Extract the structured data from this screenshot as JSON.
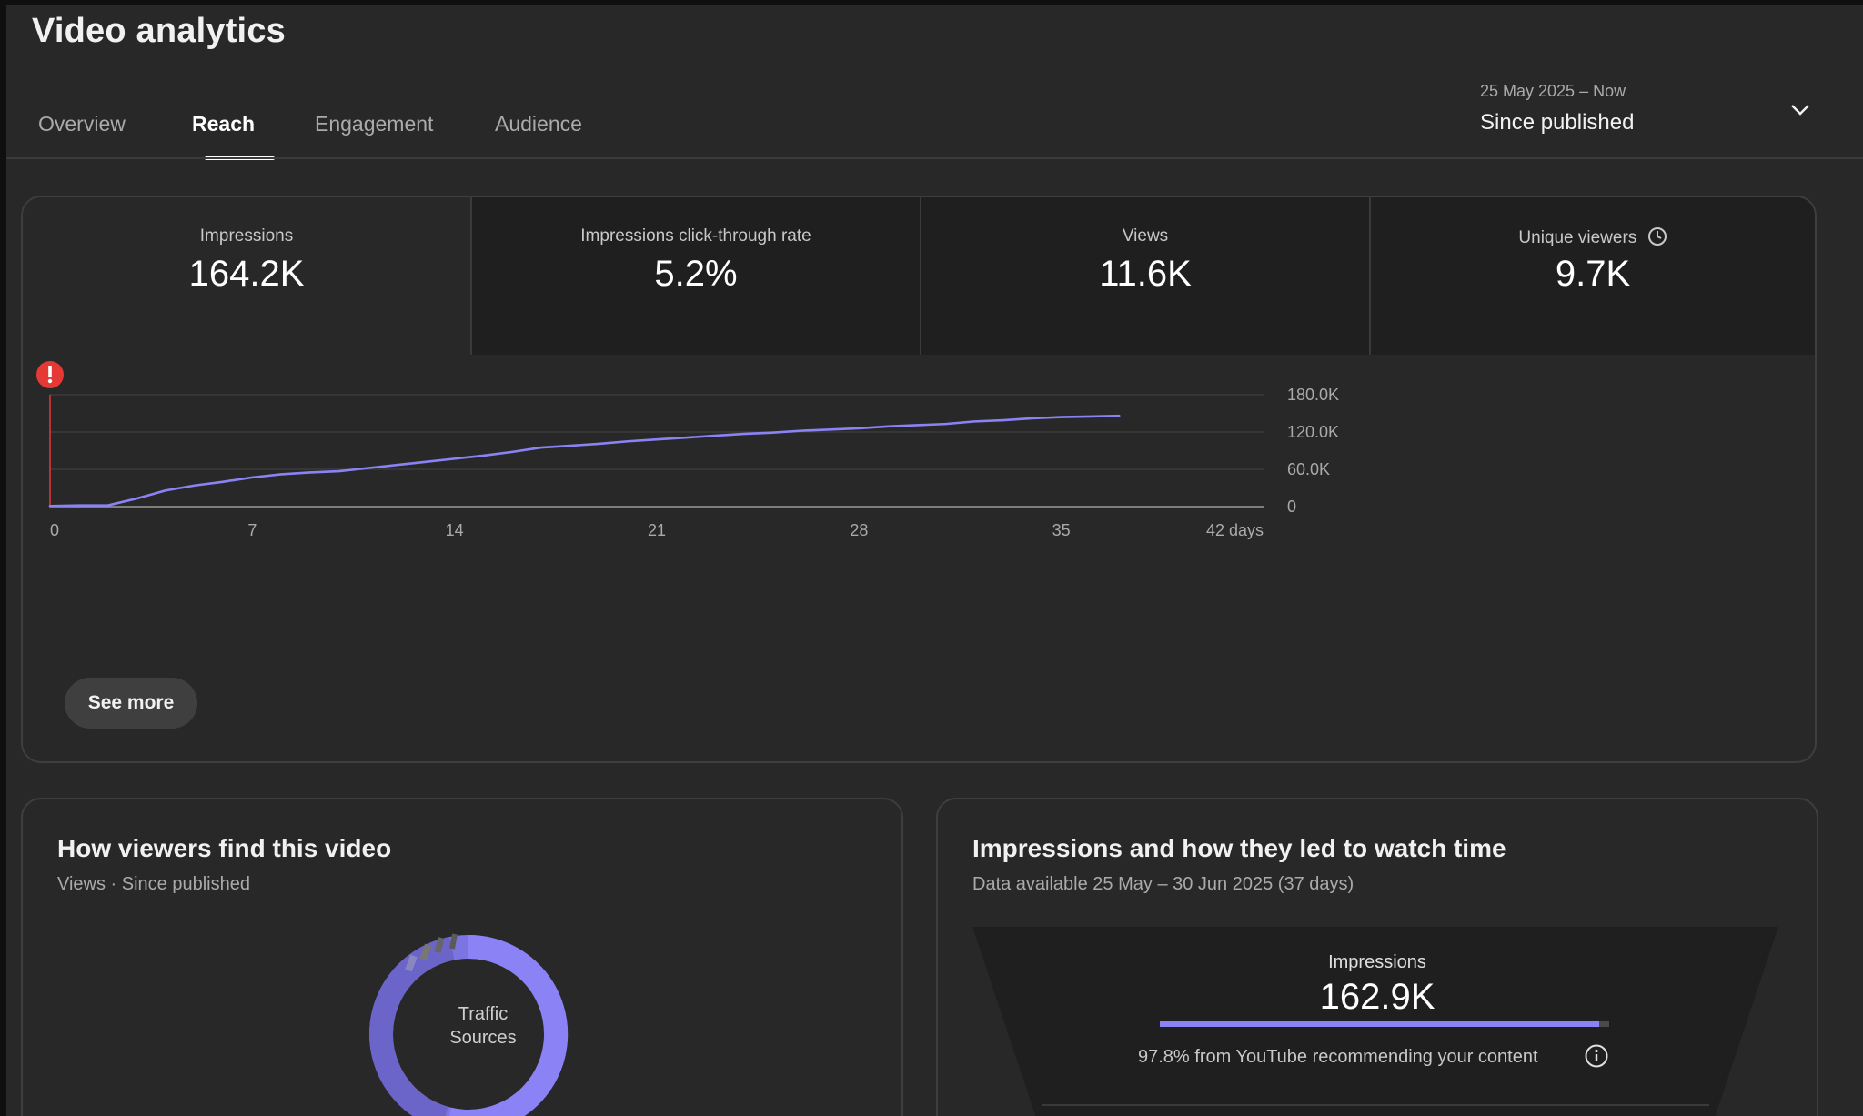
{
  "page": {
    "title": "Video analytics"
  },
  "tabs": [
    {
      "label": "Overview",
      "active": false
    },
    {
      "label": "Reach",
      "active": true
    },
    {
      "label": "Engagement",
      "active": false
    },
    {
      "label": "Audience",
      "active": false
    }
  ],
  "date_picker": {
    "range": "25 May 2025 – Now",
    "label": "Since published",
    "icon": "chevron-down-icon"
  },
  "metrics": [
    {
      "label": "Impressions",
      "value": "164.2K",
      "selected": true
    },
    {
      "label": "Impressions click-through rate",
      "value": "5.2%",
      "selected": false
    },
    {
      "label": "Views",
      "value": "11.6K",
      "selected": false
    },
    {
      "label": "Unique viewers",
      "value": "9.7K",
      "selected": false,
      "icon": "clock-icon"
    }
  ],
  "chart_data": {
    "type": "line",
    "series": [
      {
        "color": "#8b83f5",
        "x": [
          0,
          1,
          2,
          3,
          4,
          5,
          6,
          7,
          8,
          9,
          10,
          11,
          12,
          13,
          14,
          15,
          16,
          17,
          18,
          19,
          20,
          21,
          22,
          23,
          24,
          25,
          26,
          27,
          28,
          29,
          30,
          31,
          32,
          33,
          34,
          35,
          36,
          37
        ],
        "values": [
          1000,
          2000,
          2000,
          13000,
          26000,
          34000,
          40000,
          47000,
          52000,
          55000,
          57000,
          62000,
          67000,
          72000,
          77000,
          82000,
          88000,
          95000,
          98000,
          101000,
          105000,
          108000,
          111000,
          114000,
          117000,
          119000,
          122000,
          124000,
          126000,
          129000,
          131000,
          133000,
          137000,
          139000,
          142000,
          144000,
          145000,
          146000
        ]
      }
    ],
    "x_ticks": [
      "0",
      "7",
      "14",
      "21",
      "28",
      "35",
      "42 days"
    ],
    "x_tick_values": [
      0,
      7,
      14,
      21,
      28,
      35,
      42
    ],
    "xlim": [
      0,
      42
    ],
    "y_ticks": [
      "180.0K",
      "120.0K",
      "60.0K",
      "0"
    ],
    "y_tick_values": [
      180000,
      120000,
      60000,
      0
    ],
    "ylim": [
      0,
      180000
    ],
    "grid": true,
    "y_axis_side": "right",
    "publish_marker": {
      "x": 0,
      "color": "#e53935",
      "icon": "alert-icon"
    }
  },
  "see_more": "See more",
  "traffic_card": {
    "title": "How viewers find this video",
    "subtitle": "Views · Since published",
    "donut_label_line1": "Traffic",
    "donut_label_line2": "Sources"
  },
  "impressions_card": {
    "title": "Impressions and how they led to watch time",
    "subtitle": "Data available 25 May – 30 Jun 2025 (37 days)",
    "funnel_label": "Impressions",
    "funnel_value": "162.9K",
    "funnel_note": "97.8% from YouTube recommending your content",
    "funnel_share": 0.978,
    "icon": "info-icon"
  },
  "colors": {
    "accent": "#8b83f5",
    "alert": "#e53935"
  }
}
